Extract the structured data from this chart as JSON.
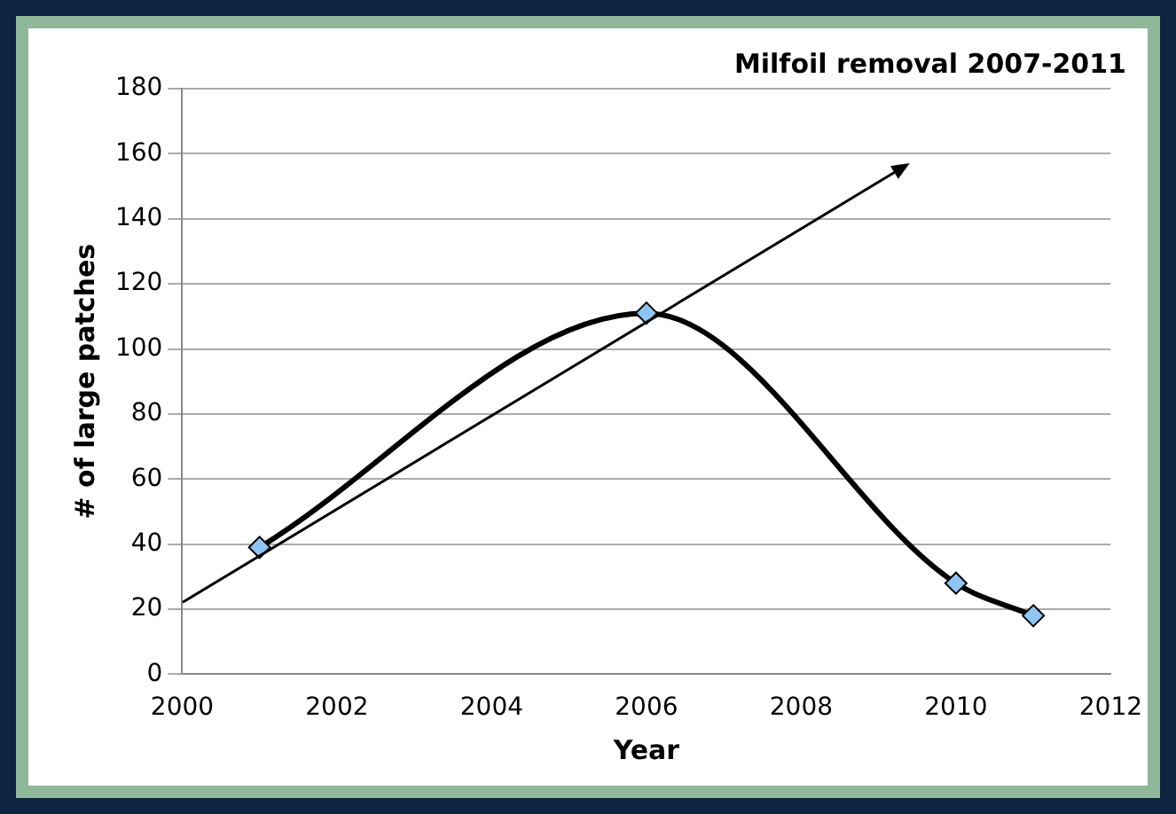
{
  "chart_data": {
    "type": "line",
    "title": "Milfoil removal 2007-2011",
    "xlabel": "Year",
    "ylabel": "# of large patches",
    "xlim": [
      2000,
      2012
    ],
    "xticks": [
      2000,
      2002,
      2004,
      2006,
      2008,
      2010,
      2012
    ],
    "ylim": [
      0,
      180
    ],
    "yticks": [
      0,
      20,
      40,
      60,
      80,
      100,
      120,
      140,
      160,
      180
    ],
    "grid": "y",
    "legend": false,
    "marker": "diamond",
    "line_style": "solid",
    "series": [
      {
        "color": "#8ec5f2",
        "x": [
          2001,
          2006,
          2010,
          2011
        ],
        "values": [
          39,
          111,
          28,
          18
        ]
      }
    ]
  }
}
